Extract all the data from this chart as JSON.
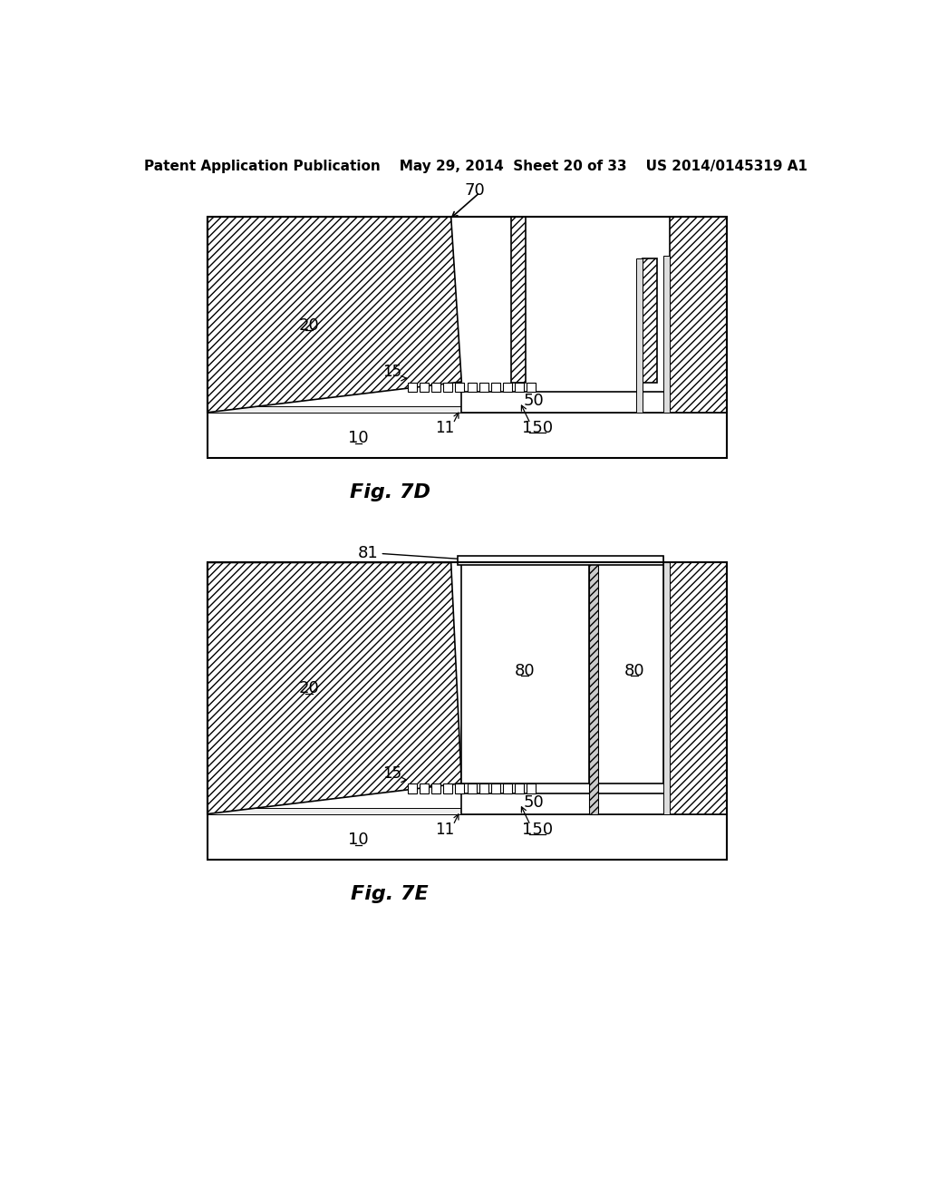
{
  "bg_color": "#ffffff",
  "line_color": "#000000",
  "header_text": "Patent Application Publication    May 29, 2014  Sheet 20 of 33    US 2014/0145319 A1",
  "fig7d_label": "Fig. 7D",
  "fig7e_label": "Fig. 7E",
  "label_fontsize": 13,
  "header_fontsize": 11,
  "caption_fontsize": 16
}
